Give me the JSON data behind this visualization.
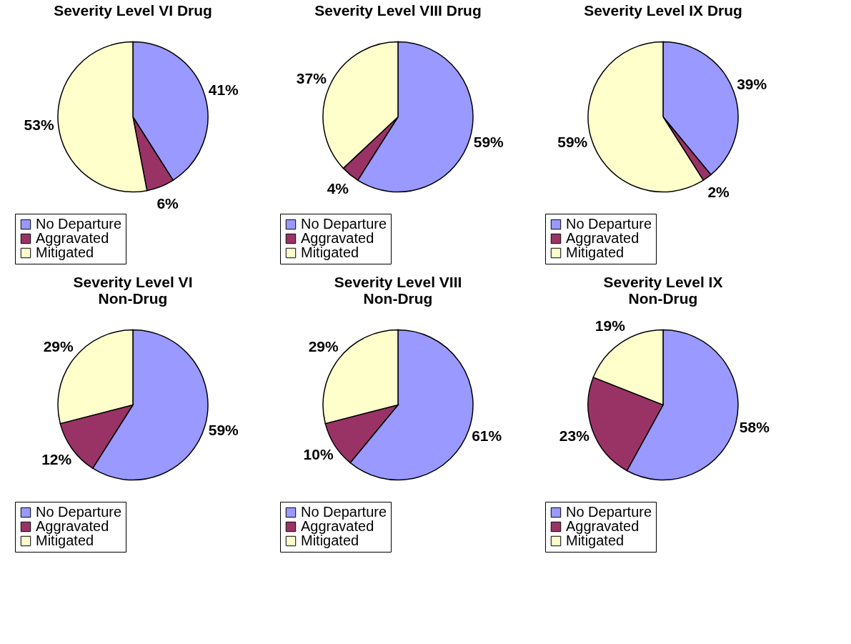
{
  "chart_data": [
    {
      "type": "pie",
      "title": "Severity Level VI Drug",
      "categories": [
        "No Departure",
        "Aggravated",
        "Mitigated"
      ],
      "values": [
        41,
        6,
        53
      ],
      "value_labels": [
        "41%",
        "6%",
        "53%"
      ],
      "colors": [
        "#9999ff",
        "#993366",
        "#ffffcc"
      ],
      "legend": "bottom left"
    },
    {
      "type": "pie",
      "title": "Severity Level VIII Drug",
      "categories": [
        "No Departure",
        "Aggravated",
        "Mitigated"
      ],
      "values": [
        59,
        4,
        37
      ],
      "value_labels": [
        "59%",
        "4%",
        "37%"
      ],
      "colors": [
        "#9999ff",
        "#993366",
        "#ffffcc"
      ],
      "legend": "bottom left"
    },
    {
      "type": "pie",
      "title": "Severity Level IX Drug",
      "categories": [
        "No Departure",
        "Aggravated",
        "Mitigated"
      ],
      "values": [
        39,
        2,
        59
      ],
      "value_labels": [
        "39%",
        "2%",
        "59%"
      ],
      "colors": [
        "#9999ff",
        "#993366",
        "#ffffcc"
      ],
      "legend": "bottom left"
    },
    {
      "type": "pie",
      "title": "Severity Level VI\nNon-Drug",
      "categories": [
        "No Departure",
        "Aggravated",
        "Mitigated"
      ],
      "values": [
        59,
        12,
        29
      ],
      "value_labels": [
        "59%",
        "12%",
        "29%"
      ],
      "colors": [
        "#9999ff",
        "#993366",
        "#ffffcc"
      ],
      "legend": "bottom left"
    },
    {
      "type": "pie",
      "title": "Severity Level VIII\nNon-Drug",
      "categories": [
        "No Departure",
        "Aggravated",
        "Mitigated"
      ],
      "values": [
        61,
        10,
        29
      ],
      "value_labels": [
        "61%",
        "10%",
        "29%"
      ],
      "colors": [
        "#9999ff",
        "#993366",
        "#ffffcc"
      ],
      "legend": "bottom left"
    },
    {
      "type": "pie",
      "title": "Severity Level IX\nNon-Drug",
      "categories": [
        "No Departure",
        "Aggravated",
        "Mitigated"
      ],
      "values": [
        58,
        23,
        19
      ],
      "value_labels": [
        "58%",
        "23%",
        "19%"
      ],
      "colors": [
        "#9999ff",
        "#993366",
        "#ffffcc"
      ],
      "legend": "bottom left"
    }
  ]
}
